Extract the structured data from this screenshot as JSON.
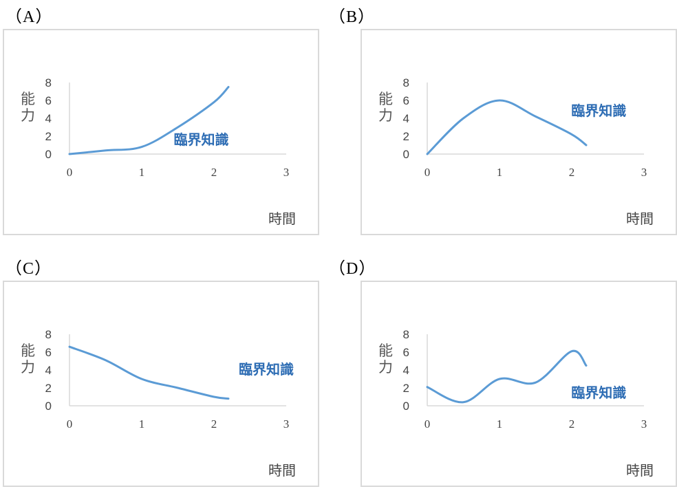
{
  "chart_data": [
    {
      "option": "（A）",
      "type": "line",
      "ylabel": [
        "能",
        "力"
      ],
      "xlabel": "時間",
      "series_label": "臨界知識",
      "xlim": [
        0,
        3
      ],
      "ylim": [
        0,
        8
      ],
      "xticks": [
        0,
        1,
        2,
        3
      ],
      "yticks": [
        0,
        2,
        4,
        6,
        8
      ],
      "color": "#5b9bd5",
      "series": [
        {
          "x": [
            0,
            0.5,
            1,
            1.5,
            2,
            2.2
          ],
          "y": [
            0,
            0.4,
            0.8,
            3,
            5.8,
            7.5
          ]
        }
      ],
      "label_pos": [
        1.9,
        1.8
      ]
    },
    {
      "option": "（B）",
      "type": "line",
      "ylabel": [
        "能",
        "力"
      ],
      "xlabel": "時間",
      "series_label": "臨界知識",
      "xlim": [
        0,
        3
      ],
      "ylim": [
        0,
        8
      ],
      "xticks": [
        0,
        1,
        2,
        3
      ],
      "yticks": [
        0,
        2,
        4,
        6,
        8
      ],
      "color": "#5b9bd5",
      "series": [
        {
          "x": [
            0,
            0.5,
            1,
            1.5,
            2,
            2.2
          ],
          "y": [
            0,
            4,
            6,
            4.2,
            2.2,
            1
          ]
        }
      ],
      "label_pos": [
        2.45,
        5
      ]
    },
    {
      "option": "（C）",
      "type": "line",
      "ylabel": [
        "能",
        "力"
      ],
      "xlabel": "時間",
      "series_label": "臨界知識",
      "xlim": [
        0,
        3
      ],
      "ylim": [
        0,
        8
      ],
      "xticks": [
        0,
        1,
        2,
        3
      ],
      "yticks": [
        0,
        2,
        4,
        6,
        8
      ],
      "color": "#5b9bd5",
      "series": [
        {
          "x": [
            0,
            0.5,
            1,
            1.5,
            2,
            2.2
          ],
          "y": [
            6.6,
            5.1,
            3,
            2,
            1,
            0.8
          ]
        }
      ],
      "label_pos": [
        2.8,
        4.2
      ]
    },
    {
      "option": "（D）",
      "type": "line",
      "ylabel": [
        "能",
        "力"
      ],
      "xlabel": "時間",
      "series_label": "臨界知識",
      "xlim": [
        0,
        3
      ],
      "ylim": [
        0,
        8
      ],
      "xticks": [
        0,
        1,
        2,
        3
      ],
      "yticks": [
        0,
        2,
        4,
        6,
        8
      ],
      "color": "#5b9bd5",
      "series": [
        {
          "x": [
            0,
            0.5,
            1,
            1.5,
            2,
            2.2
          ],
          "y": [
            2.1,
            0.4,
            3,
            2.6,
            6.1,
            4.5
          ]
        }
      ],
      "label_pos": [
        2.45,
        1.6
      ]
    }
  ]
}
